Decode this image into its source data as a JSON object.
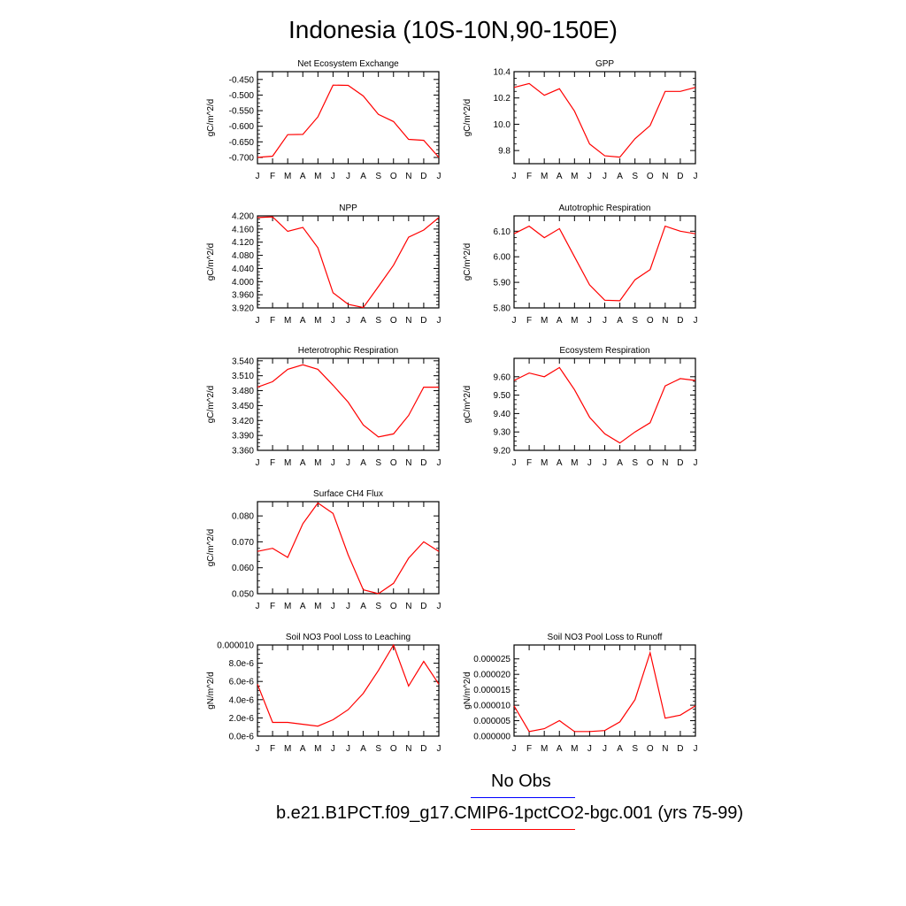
{
  "title": "Indonesia (10S-10N,90-150E)",
  "months": [
    "J",
    "F",
    "M",
    "A",
    "M",
    "J",
    "J",
    "A",
    "S",
    "O",
    "N",
    "D",
    "J"
  ],
  "colors": {
    "model": "#ff0000",
    "obs": "#0000ff"
  },
  "legend": {
    "obs_label": "No Obs",
    "model_label": "b.e21.B1PCT.f09_g17.CMIP6-1pctCO2-bgc.001 (yrs 75-99)"
  },
  "chart_data": [
    {
      "type": "line",
      "title": "Net Ecosystem Exchange",
      "ylabel": "gC/m^2/d",
      "ylim": [
        -0.72,
        -0.425
      ],
      "yticks": [
        -0.7,
        -0.65,
        -0.6,
        -0.55,
        -0.5,
        -0.45
      ],
      "ytick_labels": [
        "-0.700",
        "-0.650",
        "-0.600",
        "-0.550",
        "-0.500",
        "-0.450"
      ],
      "x": [
        "J",
        "F",
        "M",
        "A",
        "M",
        "J",
        "J",
        "A",
        "S",
        "O",
        "N",
        "D",
        "J"
      ],
      "series": [
        {
          "values": [
            -0.7,
            -0.696,
            -0.627,
            -0.626,
            -0.57,
            -0.468,
            -0.469,
            -0.503,
            -0.562,
            -0.585,
            -0.642,
            -0.645,
            -0.7
          ]
        }
      ]
    },
    {
      "type": "line",
      "title": "GPP",
      "ylabel": "gC/m^2/d",
      "ylim": [
        9.7,
        10.4
      ],
      "yticks": [
        9.8,
        10.0,
        10.2,
        10.4
      ],
      "ytick_labels": [
        "9.8",
        "10.0",
        "10.2",
        "10.4"
      ],
      "x": [
        "J",
        "F",
        "M",
        "A",
        "M",
        "J",
        "J",
        "A",
        "S",
        "O",
        "N",
        "D",
        "J"
      ],
      "series": [
        {
          "values": [
            10.28,
            10.31,
            10.22,
            10.27,
            10.1,
            9.85,
            9.76,
            9.75,
            9.89,
            9.99,
            10.25,
            10.25,
            10.28
          ]
        }
      ]
    },
    {
      "type": "line",
      "title": "NPP",
      "ylabel": "gC/m^2/d",
      "ylim": [
        3.92,
        4.2
      ],
      "yticks": [
        3.92,
        3.96,
        4.0,
        4.04,
        4.08,
        4.12,
        4.16,
        4.2
      ],
      "ytick_labels": [
        "3.920",
        "3.960",
        "4.000",
        "4.040",
        "4.080",
        "4.120",
        "4.160",
        "4.200"
      ],
      "x": [
        "J",
        "F",
        "M",
        "A",
        "M",
        "J",
        "J",
        "A",
        "S",
        "O",
        "N",
        "D",
        "J"
      ],
      "series": [
        {
          "values": [
            4.195,
            4.197,
            4.153,
            4.165,
            4.103,
            3.966,
            3.931,
            3.921,
            3.985,
            4.05,
            4.135,
            4.157,
            4.195
          ]
        }
      ]
    },
    {
      "type": "line",
      "title": "Autotrophic Respiration",
      "ylabel": "gC/m^2/d",
      "ylim": [
        5.8,
        6.16
      ],
      "yticks": [
        5.8,
        5.9,
        6.0,
        6.1
      ],
      "ytick_labels": [
        "5.80",
        "5.90",
        "6.00",
        "6.10"
      ],
      "x": [
        "J",
        "F",
        "M",
        "A",
        "M",
        "J",
        "J",
        "A",
        "S",
        "O",
        "N",
        "D",
        "J"
      ],
      "series": [
        {
          "values": [
            6.09,
            6.12,
            6.075,
            6.11,
            6.0,
            5.89,
            5.83,
            5.828,
            5.91,
            5.95,
            6.12,
            6.1,
            6.09
          ]
        }
      ]
    },
    {
      "type": "line",
      "title": "Heterotrophic Respiration",
      "ylabel": "gC/m^2/d",
      "ylim": [
        3.36,
        3.545
      ],
      "yticks": [
        3.36,
        3.39,
        3.42,
        3.45,
        3.48,
        3.51,
        3.54
      ],
      "ytick_labels": [
        "3.360",
        "3.390",
        "3.420",
        "3.450",
        "3.480",
        "3.510",
        "3.540"
      ],
      "x": [
        "J",
        "F",
        "M",
        "A",
        "M",
        "J",
        "J",
        "A",
        "S",
        "O",
        "N",
        "D",
        "J"
      ],
      "series": [
        {
          "values": [
            3.487,
            3.498,
            3.523,
            3.532,
            3.523,
            3.491,
            3.457,
            3.411,
            3.387,
            3.393,
            3.43,
            3.487,
            3.487
          ]
        }
      ]
    },
    {
      "type": "line",
      "title": "Ecosystem Respiration",
      "ylabel": "gC/m^2/d",
      "ylim": [
        9.2,
        9.7
      ],
      "yticks": [
        9.2,
        9.3,
        9.4,
        9.5,
        9.6
      ],
      "ytick_labels": [
        "9.20",
        "9.30",
        "9.40",
        "9.50",
        "9.60"
      ],
      "x": [
        "J",
        "F",
        "M",
        "A",
        "M",
        "J",
        "J",
        "A",
        "S",
        "O",
        "N",
        "D",
        "J"
      ],
      "series": [
        {
          "values": [
            9.58,
            9.62,
            9.6,
            9.65,
            9.53,
            9.38,
            9.29,
            9.24,
            9.3,
            9.35,
            9.55,
            9.59,
            9.58
          ]
        }
      ]
    },
    {
      "type": "line",
      "title": "Surface CH4 Flux",
      "ylabel": "gC/m^2/d",
      "ylim": [
        0.05,
        0.0855
      ],
      "yticks": [
        0.05,
        0.06,
        0.07,
        0.08
      ],
      "ytick_labels": [
        "0.050",
        "0.060",
        "0.070",
        "0.080"
      ],
      "x": [
        "J",
        "F",
        "M",
        "A",
        "M",
        "J",
        "J",
        "A",
        "S",
        "O",
        "N",
        "D",
        "J"
      ],
      "series": [
        {
          "values": [
            0.0663,
            0.0675,
            0.064,
            0.077,
            0.085,
            0.081,
            0.065,
            0.0515,
            0.05,
            0.054,
            0.0637,
            0.07,
            0.0663
          ]
        }
      ]
    },
    {
      "type": "line",
      "title": "Soil NO3 Pool Loss to Leaching",
      "ylabel": "gN/m^2/d",
      "ylim": [
        0,
        1e-05
      ],
      "yticks": [
        0,
        2e-06,
        4e-06,
        6e-06,
        8e-06,
        1e-05
      ],
      "ytick_labels": [
        "0.0e-6",
        "2.0e-6",
        "4.0e-6",
        "6.0e-6",
        "8.0e-6",
        "0.000010"
      ],
      "x": [
        "J",
        "F",
        "M",
        "A",
        "M",
        "J",
        "J",
        "A",
        "S",
        "O",
        "N",
        "D",
        "J"
      ],
      "series": [
        {
          "values": [
            5.7e-06,
            1.5e-06,
            1.5e-06,
            1.3e-06,
            1.1e-06,
            1.8e-06,
            2.9e-06,
            4.7e-06,
            7.2e-06,
            1e-05,
            5.5e-06,
            8.2e-06,
            5.7e-06
          ]
        }
      ]
    },
    {
      "type": "line",
      "title": "Soil NO3 Pool Loss to Runoff",
      "ylabel": "gN/m^2/d",
      "ylim": [
        0,
        2.95e-05
      ],
      "yticks": [
        0,
        5e-06,
        1e-05,
        1.5e-05,
        2e-05,
        2.5e-05
      ],
      "ytick_labels": [
        "0.000000",
        "0.000005",
        "0.000010",
        "0.000015",
        "0.000020",
        "0.000025"
      ],
      "x": [
        "J",
        "F",
        "M",
        "A",
        "M",
        "J",
        "J",
        "A",
        "S",
        "O",
        "N",
        "D",
        "J"
      ],
      "series": [
        {
          "values": [
            9.8e-06,
            1.5e-06,
            2.4e-06,
            5e-06,
            1.5e-06,
            1.5e-06,
            1.8e-06,
            4.6e-06,
            1.18e-05,
            2.7e-05,
            5.8e-06,
            6.8e-06,
            9.8e-06
          ]
        }
      ]
    }
  ]
}
